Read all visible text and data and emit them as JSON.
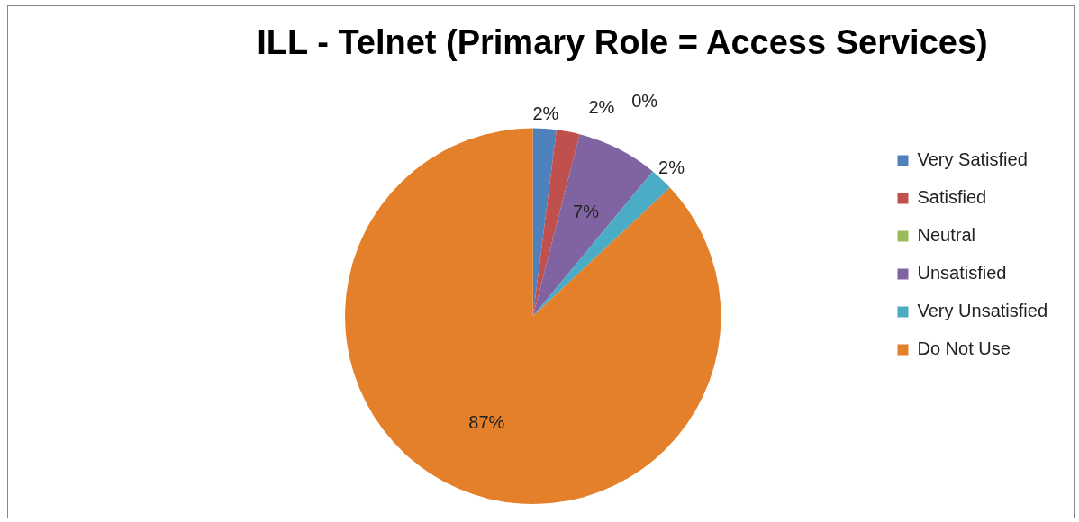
{
  "chart_data": {
    "type": "pie",
    "title": "ILL - Telnet (Primary Role = Access Services)",
    "categories": [
      "Very Satisfied",
      "Satisfied",
      "Neutral",
      "Unsatisfied",
      "Very Unsatisfied",
      "Do Not Use"
    ],
    "values": [
      2,
      2,
      0,
      7,
      2,
      87
    ],
    "value_labels": [
      "2%",
      "2%",
      "0%",
      "7%",
      "2%",
      "87%"
    ],
    "colors": [
      "#4f81bd",
      "#c0504d",
      "#9bbb59",
      "#8064a2",
      "#4bacc6",
      "#e47f2a"
    ],
    "legend": "right"
  }
}
